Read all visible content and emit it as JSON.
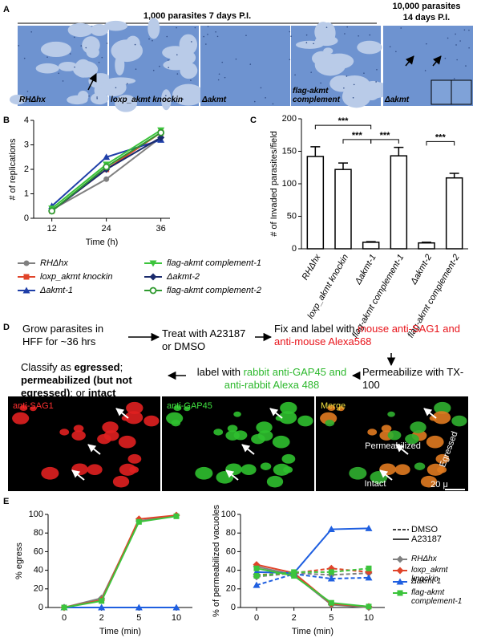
{
  "panel_labels": [
    "A",
    "B",
    "C",
    "D",
    "E"
  ],
  "panel_a": {
    "headers": [
      "1,000 parasites 7 days P.I.",
      [
        "10,000 parasites",
        "14 days P.I."
      ]
    ],
    "images": [
      "RHΔhx",
      "loxp_akmt knockin",
      "Δakmt",
      "flag-akmt complement",
      "Δakmt"
    ]
  },
  "chart_data": [
    {
      "type": "line",
      "y_label": "# of replications",
      "x_label": "Time (h)",
      "x": [
        12,
        24,
        36
      ],
      "xlim": [
        8,
        38
      ],
      "xticks": [
        12,
        24,
        36
      ],
      "ylim": [
        0,
        4
      ],
      "yticks": [
        0,
        1,
        2,
        3,
        4
      ],
      "series": [
        {
          "name": "RHΔhx",
          "color": "#808080",
          "marker": "circle",
          "values": [
            0.35,
            1.6,
            3.3
          ]
        },
        {
          "name": "loxp_akmt knockin",
          "color": "#e0442a",
          "marker": "square",
          "values": [
            0.3,
            2.0,
            3.5
          ]
        },
        {
          "name": "Δakmt-1",
          "color": "#1f3fa8",
          "marker": "triangle",
          "values": [
            0.5,
            2.5,
            3.2
          ]
        },
        {
          "name": "flag-akmt complement-1",
          "color": "#3cc43c",
          "marker": "triangle-down",
          "values": [
            0.4,
            2.2,
            3.6
          ]
        },
        {
          "name": "Δakmt-2",
          "color": "#1a2a6c",
          "marker": "diamond",
          "values": [
            0.3,
            2.0,
            3.3
          ]
        },
        {
          "name": "flag-akmt complement-2",
          "color": "#2f9a2f",
          "marker": "open-circle",
          "values": [
            0.3,
            2.1,
            3.5
          ]
        }
      ]
    },
    {
      "type": "bar",
      "y_label": "# of Invaded parasites/field",
      "categories": [
        "RHΔhx",
        "loxp_akmt knockin",
        "Δakmt-1",
        "flag-akmt complement-1",
        "Δakmt-2",
        "flag-akmt complement-2"
      ],
      "values": [
        142,
        122,
        10,
        143,
        9,
        109
      ],
      "errors": [
        15,
        10,
        1,
        13,
        1,
        7
      ],
      "color": "#ffffff",
      "ylim": [
        0,
        200
      ],
      "yticks": [
        0,
        50,
        100,
        150,
        200
      ],
      "annotations": [
        "***",
        "***",
        "***",
        "***"
      ]
    },
    {
      "type": "line",
      "y_label": "% egress",
      "x_label": "Time (min)",
      "categories": [
        "0",
        "2",
        "5",
        "10"
      ],
      "ylim": [
        0,
        100
      ],
      "yticks": [
        0,
        20,
        40,
        60,
        80,
        100
      ],
      "series": [
        {
          "color": "#808080",
          "marker": "diamond",
          "values": [
            0,
            10,
            93,
            99
          ]
        },
        {
          "color": "#e0442a",
          "marker": "diamond",
          "values": [
            0,
            8,
            95,
            99
          ]
        },
        {
          "color": "#1f5fe0",
          "marker": "triangle",
          "values": [
            0,
            0,
            0,
            0
          ]
        },
        {
          "color": "#3cc43c",
          "marker": "square",
          "values": [
            0,
            7,
            92,
            98
          ]
        }
      ]
    },
    {
      "type": "line",
      "y_label": "% of permeabilized vacuoles",
      "x_label": "Time (min)",
      "categories": [
        "0",
        "2",
        "5",
        "10"
      ],
      "ylim": [
        0,
        100
      ],
      "yticks": [
        0,
        20,
        40,
        60,
        80,
        100
      ],
      "line_styles": [
        {
          "label": "DMSO",
          "dashed": true
        },
        {
          "label": "A23187",
          "dashed": false
        }
      ],
      "series": [
        {
          "name": "RHΔhx",
          "color": "#808080",
          "marker": "diamond",
          "values": [
            44,
            35,
            3,
            0
          ],
          "dmso_values": [
            33,
            37,
            35,
            37
          ]
        },
        {
          "name": "loxp_akmt knockin",
          "color": "#e0442a",
          "marker": "diamond",
          "values": [
            46,
            37,
            4,
            1
          ],
          "dmso_values": [
            35,
            37,
            42,
            38
          ]
        },
        {
          "name": "Δakmt-1",
          "color": "#1f5fe0",
          "marker": "triangle",
          "values": [
            38,
            37,
            84,
            85
          ],
          "dmso_values": [
            24,
            36,
            31,
            32
          ]
        },
        {
          "name": "flag-akmt complement-1",
          "color": "#3cc43c",
          "marker": "square",
          "values": [
            42,
            34,
            5,
            1
          ],
          "dmso_values": [
            34,
            38,
            38,
            42
          ]
        }
      ]
    }
  ],
  "panel_d": {
    "steps": [
      [
        {
          "text": "Grow parasites in HFF for ~36 hrs"
        }
      ],
      [
        {
          "text": "Treat with A23187 or DMSO"
        }
      ],
      [
        {
          "text": "Fix and label with "
        },
        {
          "text": "mouse anti-SAG1 and anti-mouse Alexa568",
          "color": "#e8141b"
        }
      ],
      [
        {
          "text": "Permeabilize with TX-100"
        }
      ],
      [
        {
          "text": "label with "
        },
        {
          "text": "rabbit anti-GAP45 and anti-rabbit Alexa 488",
          "color": "#2db82d"
        }
      ],
      [
        {
          "text": "Classify as "
        },
        {
          "text": "egressed",
          "bold": true
        },
        {
          "text": "; "
        },
        {
          "text": "permeabilized (but not egressed)",
          "bold": true
        },
        {
          "text": "; or "
        },
        {
          "text": "intact",
          "bold": true
        }
      ]
    ],
    "channels": [
      {
        "label": "anti-SAG1",
        "color": "#ff3030"
      },
      {
        "label": "anti-GAP45",
        "color": "#40e040"
      },
      {
        "label": "Merge",
        "color": "#f0e040"
      }
    ],
    "annotations": [
      "Permeabilized",
      "Egressed",
      "Intact",
      "20 μ"
    ]
  }
}
